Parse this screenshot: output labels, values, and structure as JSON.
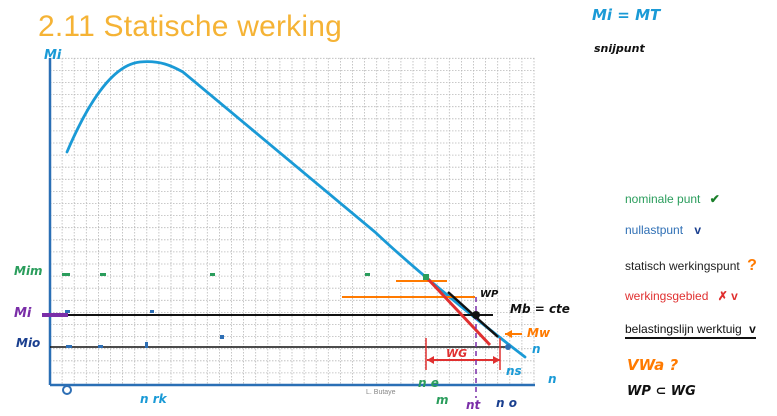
{
  "slide": {
    "title": "2.11 Statische werking",
    "credit": "L. Butaye"
  },
  "legend": [
    {
      "label": "nominale punt",
      "color": "#2a9d5c",
      "mark": "✔",
      "mark_color": "#1a7f2a"
    },
    {
      "label": "nullastpunt",
      "color": "#2e6fb5",
      "mark": "v",
      "mark_color": "#1a3f8f"
    },
    {
      "label": "statisch werkingspunt",
      "color": "#222222",
      "mark": "?",
      "mark_color": "#ff7a00"
    },
    {
      "label": "werkingsgebied",
      "color": "#e03030",
      "mark": "✗ v",
      "mark_color": "#e03030"
    },
    {
      "label": "belastingslijn werktuig",
      "color": "#111111",
      "mark": "v",
      "mark_color": "#111111"
    }
  ],
  "notes": {
    "top_formula": "Mi = MT",
    "top_word": "snijpunt",
    "vw_note": "VWa ?",
    "wp_note": "WP ⊂ WG"
  },
  "labels": {
    "y_top": "Mi",
    "mim": "Mim",
    "mi": "Mi",
    "mio": "Mio",
    "origin": "O",
    "n_rk": "n rk",
    "mb": "Mb = cte",
    "wp": "WP",
    "wg": "WG",
    "mw": "Mw",
    "n_e": "n e",
    "ns": "ns",
    "n_m": "n",
    "m_nm": "m",
    "n_t": "nt",
    "n_o": "n o"
  },
  "colors": {
    "title": "#f5b335",
    "curve": "#1a9ad6",
    "grid": "#b8b8b8",
    "nominal": "#2a9d5c",
    "work_point": "#ff7a00",
    "work_range": "#e03030",
    "load_line": "#111111",
    "purple": "#7a2ea8"
  }
}
